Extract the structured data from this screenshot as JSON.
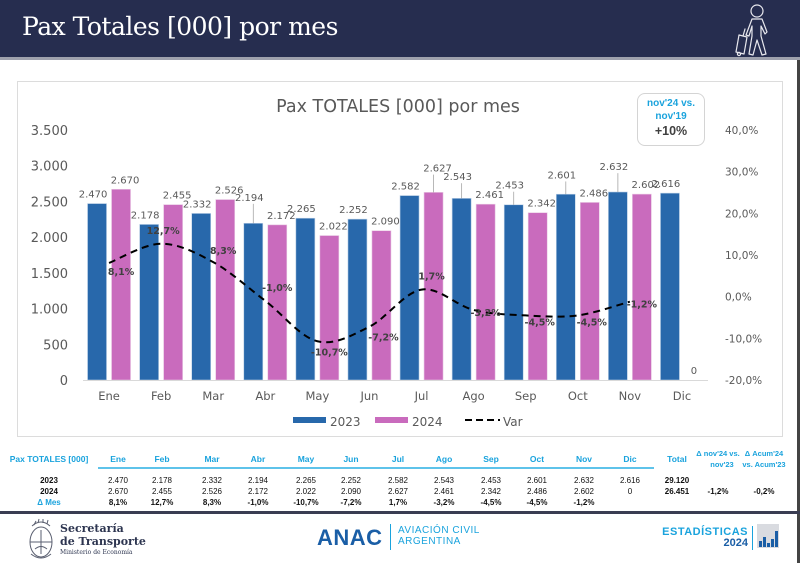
{
  "header": {
    "title": "Pax Totales [000] por mes",
    "icon": "traveler-with-luggage-icon"
  },
  "kpi": {
    "line1": "nov'24 vs.",
    "line2": "nov'19",
    "value": "+10%"
  },
  "colors": {
    "header_bg": "#262d4f",
    "series_2023": "#2868ab",
    "series_2024": "#c96bbd",
    "var_line": "#000000",
    "accent": "#1aa3dd"
  },
  "chart_data": {
    "type": "bar",
    "title": "Pax TOTALES [000] por mes",
    "categories": [
      "Ene",
      "Feb",
      "Mar",
      "Abr",
      "May",
      "Jun",
      "Jul",
      "Ago",
      "Sep",
      "Oct",
      "Nov",
      "Dic"
    ],
    "series": [
      {
        "name": "2023",
        "type": "bar",
        "values": [
          2470,
          2178,
          2332,
          2194,
          2265,
          2252,
          2582,
          2543,
          2453,
          2601,
          2632,
          2616
        ],
        "labels": [
          "2.470",
          "2.178",
          "2.332",
          "2.194",
          "2.265",
          "2.252",
          "2.582",
          "2.543",
          "2.453",
          "2.601",
          "2.632",
          "2.616"
        ]
      },
      {
        "name": "2024",
        "type": "bar",
        "values": [
          2670,
          2455,
          2526,
          2172,
          2022,
          2090,
          2627,
          2461,
          2342,
          2486,
          2602,
          0
        ],
        "labels": [
          "2.670",
          "2.455",
          "2.526",
          "2.172",
          "2.022",
          "2.090",
          "2.627",
          "2.461",
          "2.342",
          "2.486",
          "2.602",
          "0"
        ]
      },
      {
        "name": "Var",
        "type": "line",
        "axis": "secondary",
        "style": "dashed",
        "values": [
          8.1,
          12.7,
          8.3,
          -1.0,
          -10.7,
          -7.2,
          1.7,
          -3.2,
          -4.5,
          -4.5,
          -1.2,
          null
        ],
        "labels": [
          "8,1%",
          "12,7%",
          "8,3%",
          "-1,0%",
          "-10,7%",
          "-7,2%",
          "1,7%",
          "-3,2%",
          "-4,5%",
          "-4,5%",
          "-1,2%",
          null
        ]
      }
    ],
    "ylim": [
      0,
      3500
    ],
    "yticks": [
      0,
      500,
      1000,
      1500,
      2000,
      2500,
      3000,
      3500
    ],
    "ytick_labels": [
      "0",
      "500",
      "1.000",
      "1.500",
      "2.000",
      "2.500",
      "3.000",
      "3.500"
    ],
    "y2lim": [
      -20,
      40
    ],
    "y2ticks": [
      -20,
      -10,
      0,
      10,
      20,
      30,
      40
    ],
    "y2tick_labels": [
      "-20,0%",
      "-10,0%",
      "0,0%",
      "10,0%",
      "20,0%",
      "30,0%",
      "40,0%"
    ],
    "xlabel": "",
    "ylabel": "",
    "grid": false,
    "legend": {
      "placement": "bottom",
      "entries": [
        "2023",
        "2024",
        "Var"
      ]
    }
  },
  "table": {
    "title": "Pax TOTALES [000]",
    "months": [
      "Ene",
      "Feb",
      "Mar",
      "Abr",
      "May",
      "Jun",
      "Jul",
      "Ago",
      "Sep",
      "Oct",
      "Nov",
      "Dic"
    ],
    "total_header": "Total",
    "delta_month_header": "Δ nov'24 vs. nov'23",
    "delta_month_header_l1": "Δ nov'24 vs.",
    "delta_month_header_l2": "nov'23",
    "delta_acum_header_l1": "Δ Acum'24",
    "delta_acum_header_l2": "vs. Acum'23",
    "rows": [
      {
        "label": "2023",
        "values": [
          "2.470",
          "2.178",
          "2.332",
          "2.194",
          "2.265",
          "2.252",
          "2.582",
          "2.543",
          "2.453",
          "2.601",
          "2.632",
          "2.616"
        ],
        "total": "29.120",
        "delta_month": "",
        "delta_acum": ""
      },
      {
        "label": "2024",
        "values": [
          "2.670",
          "2.455",
          "2.526",
          "2.172",
          "2.022",
          "2.090",
          "2.627",
          "2.461",
          "2.342",
          "2.486",
          "2.602",
          "0"
        ],
        "total": "26.451",
        "delta_month": "-1,2%",
        "delta_acum": "-0,2%"
      },
      {
        "label": "Δ Mes",
        "values": [
          "8,1%",
          "12,7%",
          "8,3%",
          "-1,0%",
          "-10,7%",
          "-7,2%",
          "1,7%",
          "-3,2%",
          "-4,5%",
          "-4,5%",
          "-1,2%",
          ""
        ],
        "total": "",
        "delta_month": "",
        "delta_acum": ""
      }
    ]
  },
  "footer": {
    "secretaria_l1": "Secretaría",
    "secretaria_l2": "de Transporte",
    "secretaria_l3": "Ministerio de Economía",
    "anac": "ANAC",
    "anac_l1": "AVIACIÓN CIVIL",
    "anac_l2": "ARGENTINA",
    "est_l1": "ESTADÍSTICAS",
    "est_l2": "2024"
  }
}
